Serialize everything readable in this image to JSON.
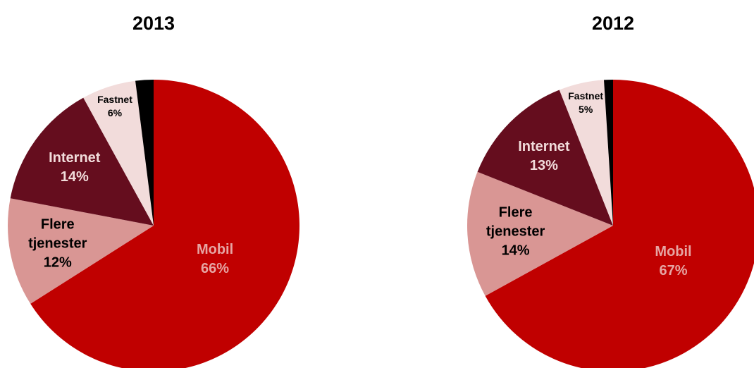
{
  "chart_data": [
    {
      "type": "pie",
      "title": "2013",
      "categories": [
        "Mobil",
        "Flere tjenester",
        "Internet",
        "Fastnet",
        null
      ],
      "values": [
        66,
        12,
        14,
        6,
        2
      ],
      "value_labels": [
        "66%",
        "12%",
        "14%",
        "6%",
        null
      ],
      "colors": [
        "#c00000",
        "#d99694",
        "#650d1e",
        "#f2dcdb",
        "#000000"
      ],
      "label_colors": [
        "#e6a5a3",
        "#000000",
        "#f2dcdb",
        "#000000",
        "#000000"
      ]
    },
    {
      "type": "pie",
      "title": "2012",
      "categories": [
        "Mobil",
        "Flere tjenester",
        "Internet",
        "Fastnet",
        null
      ],
      "values": [
        67,
        14,
        13,
        5,
        1
      ],
      "value_labels": [
        "67%",
        "14%",
        "13%",
        "5%",
        null
      ],
      "colors": [
        "#c00000",
        "#d99694",
        "#650d1e",
        "#f2dcdb",
        "#000000"
      ],
      "label_colors": [
        "#e6a5a3",
        "#000000",
        "#f2dcdb",
        "#000000",
        "#000000"
      ]
    }
  ]
}
